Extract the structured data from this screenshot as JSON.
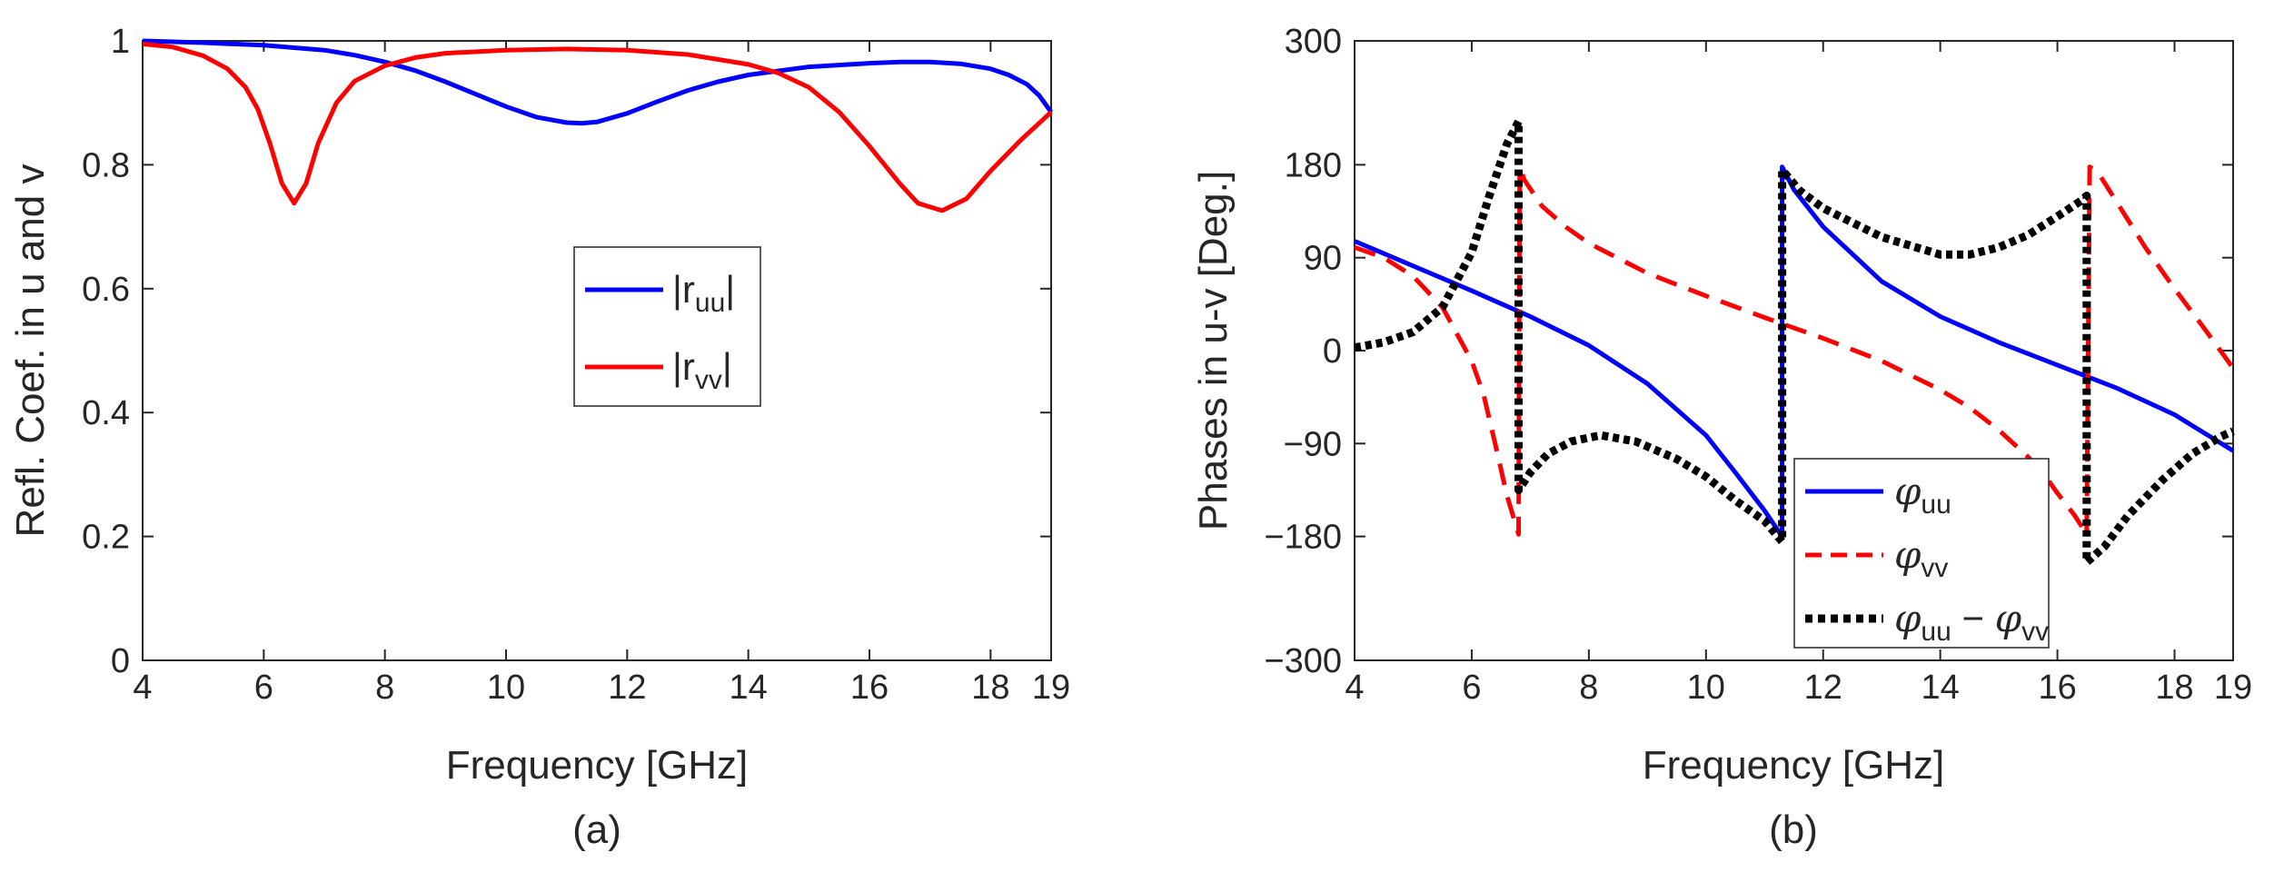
{
  "chart_data": [
    {
      "type": "line",
      "panel_label": "(a)",
      "title": "",
      "xlabel": "Frequency [GHz]",
      "ylabel": "Refl. Coef. in u and v",
      "xlim": [
        4,
        19
      ],
      "ylim": [
        0,
        1
      ],
      "xticks": [
        4,
        6,
        8,
        10,
        12,
        14,
        16,
        18,
        19
      ],
      "yticks": [
        0,
        0.2,
        0.4,
        0.6,
        0.8,
        1
      ],
      "ytick_labels": [
        "0",
        "0.2",
        "0.4",
        "0.6",
        "0.8",
        "1"
      ],
      "grid": false,
      "legend_position": "center-right",
      "series": [
        {
          "name": "|r_uu|",
          "legend_text": "|r",
          "legend_sub": "uu",
          "legend_tail": "|",
          "color": "#0000ff",
          "dash": "solid",
          "x": [
            4,
            5,
            6,
            7,
            7.5,
            8,
            8.5,
            9,
            9.5,
            10,
            10.5,
            11,
            11.25,
            11.5,
            12,
            12.5,
            13,
            13.5,
            14,
            15,
            16,
            16.5,
            17,
            17.5,
            18,
            18.3,
            18.6,
            18.8,
            19
          ],
          "y": [
            1.0,
            0.997,
            0.993,
            0.985,
            0.977,
            0.966,
            0.952,
            0.934,
            0.914,
            0.894,
            0.877,
            0.868,
            0.867,
            0.869,
            0.883,
            0.902,
            0.92,
            0.934,
            0.945,
            0.958,
            0.964,
            0.966,
            0.966,
            0.963,
            0.955,
            0.945,
            0.93,
            0.912,
            0.885
          ]
        },
        {
          "name": "|r_vv|",
          "legend_text": "|r",
          "legend_sub": "vv",
          "legend_tail": "|",
          "color": "#ff0000",
          "dash": "solid",
          "x": [
            4,
            4.5,
            5,
            5.4,
            5.7,
            5.9,
            6.1,
            6.3,
            6.5,
            6.7,
            6.9,
            7.2,
            7.5,
            8,
            8.5,
            9,
            10,
            11,
            12,
            13,
            14,
            14.5,
            15,
            15.5,
            16,
            16.5,
            16.8,
            17.2,
            17.6,
            18,
            18.5,
            19
          ],
          "y": [
            0.995,
            0.99,
            0.976,
            0.955,
            0.925,
            0.89,
            0.835,
            0.77,
            0.738,
            0.77,
            0.835,
            0.9,
            0.935,
            0.96,
            0.973,
            0.98,
            0.985,
            0.987,
            0.985,
            0.978,
            0.962,
            0.948,
            0.925,
            0.885,
            0.83,
            0.77,
            0.738,
            0.726,
            0.745,
            0.79,
            0.84,
            0.885
          ]
        }
      ]
    },
    {
      "type": "line",
      "panel_label": "(b)",
      "title": "",
      "xlabel": "Frequency [GHz]",
      "ylabel": "Phases in u-v [Deg.]",
      "xlim": [
        4,
        19
      ],
      "ylim": [
        -300,
        300
      ],
      "xticks": [
        4,
        6,
        8,
        10,
        12,
        14,
        16,
        18,
        19
      ],
      "yticks": [
        -300,
        -180,
        -90,
        0,
        90,
        180,
        300
      ],
      "ytick_labels": [
        "−300",
        "−180",
        "−90",
        "0",
        "90",
        "180",
        "300"
      ],
      "grid": false,
      "legend_position": "bottom-center-right",
      "series": [
        {
          "name": "φ_uu",
          "legend_sub": "uu",
          "color": "#0000ff",
          "dash": "solid",
          "x": [
            4,
            5,
            6,
            7,
            8,
            9,
            10,
            10.5,
            11,
            11.3,
            11.3,
            11.5,
            12,
            13,
            14,
            15,
            16,
            17,
            18,
            19
          ],
          "y": [
            106,
            82,
            58,
            33,
            5,
            -32,
            -82,
            -118,
            -155,
            -180,
            178,
            156,
            120,
            67,
            33,
            8,
            -14,
            -36,
            -62,
            -97
          ]
        },
        {
          "name": "φ_vv",
          "legend_sub": "vv",
          "color": "#ff0000",
          "dash": "dashed",
          "x": [
            4,
            4.5,
            5,
            5.5,
            6,
            6.2,
            6.4,
            6.6,
            6.8,
            6.82,
            6.9,
            7.2,
            7.6,
            8,
            9,
            10,
            11,
            12,
            13,
            14,
            14.5,
            15,
            15.5,
            15.8,
            16,
            16.3,
            16.5,
            16.55,
            16.7,
            17,
            17.5,
            18,
            18.5,
            19
          ],
          "y": [
            100,
            90,
            72,
            42,
            -10,
            -42,
            -90,
            -140,
            -178,
            178,
            165,
            140,
            120,
            104,
            75,
            53,
            32,
            12,
            -10,
            -38,
            -55,
            -77,
            -103,
            -122,
            -138,
            -160,
            -178,
            178,
            172,
            145,
            100,
            60,
            22,
            -17
          ]
        },
        {
          "name": "φ_uu − φ_vv",
          "legend_sub": "uu",
          "legend_mid": " − ",
          "legend_sub2": "vv",
          "color": "#000000",
          "dash": "dotted",
          "x": [
            4,
            4.5,
            5,
            5.5,
            6,
            6.3,
            6.6,
            6.8,
            6.8,
            7.0,
            7.3,
            7.7,
            8.2,
            8.8,
            9.5,
            10,
            10.5,
            11,
            11.3,
            11.3,
            11.6,
            12,
            13,
            14,
            14.5,
            15,
            15.5,
            16,
            16.4,
            16.5,
            16.5,
            16.8,
            17.2,
            17.8,
            18.3,
            18.8,
            19
          ],
          "y": [
            3,
            8,
            18,
            42,
            95,
            150,
            200,
            222,
            -135,
            -118,
            -100,
            -88,
            -82,
            -88,
            -105,
            -122,
            -145,
            -165,
            -185,
            175,
            155,
            138,
            110,
            93,
            93,
            100,
            112,
            130,
            145,
            150,
            -205,
            -190,
            -160,
            -125,
            -100,
            -83,
            -78
          ]
        }
      ]
    }
  ]
}
